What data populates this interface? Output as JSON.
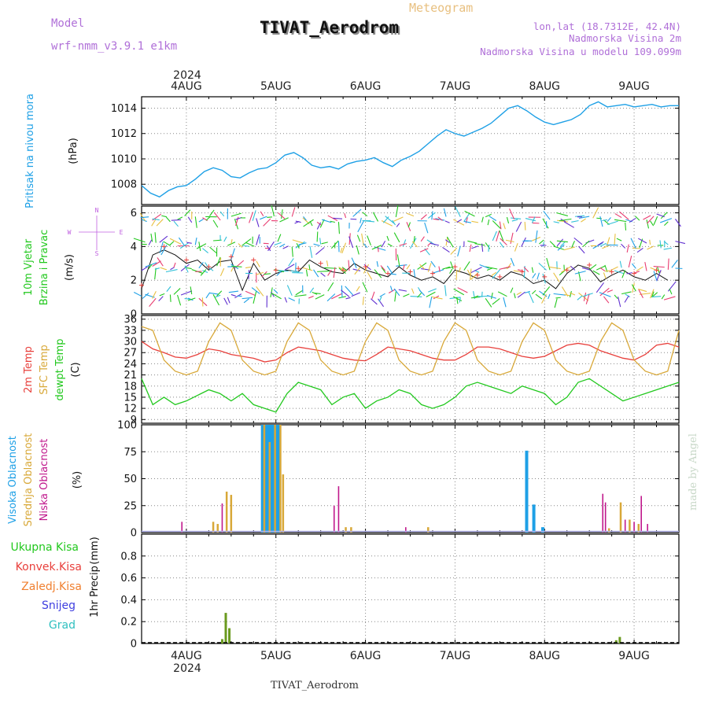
{
  "header": {
    "model_label": "Model",
    "model_name": "wrf-nmm_v3.9.1  e1km",
    "title": "TIVAT_Aerodrom",
    "product": "Meteogram",
    "lonlat": "lon,lat (18.7312E, 42.4N)",
    "altitude": "Nadmorska Visina 2m",
    "model_altitude": "Nadmorska Visina u modelu 109.099m"
  },
  "footer": {
    "station": "TIVAT_Aerodrom",
    "credit": "made by Angel"
  },
  "time_axis": {
    "year": "2024",
    "days": [
      "4AUG",
      "5AUG",
      "6AUG",
      "7AUG",
      "8AUG",
      "9AUG"
    ]
  },
  "colors": {
    "pressure": "#1ea0e6",
    "temp2m": "#e8403c",
    "sfc_temp": "#d8a838",
    "dewpt": "#22c81e",
    "high_cloud": "#1ea0e6",
    "mid_cloud": "#d8a838",
    "low_cloud": "#c0188c",
    "precip_total": "#22c81e",
    "precip_conv": "#e8403c",
    "snow": "#4040e0",
    "hail": "#30c0c0",
    "wind_text": "#c060e0"
  },
  "chart_data": [
    {
      "type": "line",
      "panel": "pressure",
      "ylabel_main": "Pritisak na nivou mora",
      "unit": "(hPa)",
      "ylim": [
        1006.4,
        1014.9
      ],
      "yticks": [
        "1008",
        "1010",
        "1012",
        "1014"
      ],
      "grid": true,
      "x_days": [
        0,
        0.1,
        0.2,
        0.3,
        0.4,
        0.5,
        0.6,
        0.7,
        0.8,
        0.9,
        1.0,
        1.1,
        1.2,
        1.3,
        1.4,
        1.5,
        1.6,
        1.7,
        1.8,
        1.9,
        2.0,
        2.1,
        2.2,
        2.3,
        2.4,
        2.5,
        2.6,
        2.7,
        2.8,
        2.9,
        3.0,
        3.1,
        3.2,
        3.3,
        3.4,
        3.5,
        3.6,
        3.7,
        3.8,
        3.9,
        4.0,
        4.1,
        4.2,
        4.3,
        4.4,
        4.5,
        4.6,
        4.7,
        4.8,
        4.9,
        5.0,
        5.1,
        5.2,
        5.3,
        5.4,
        5.5,
        5.6,
        5.7,
        5.8,
        5.9,
        6.0
      ],
      "series": [
        {
          "values": [
            1007.9,
            1007.3,
            1007.0,
            1007.5,
            1007.8,
            1007.9,
            1008.4,
            1009.0,
            1009.3,
            1009.1,
            1008.6,
            1008.5,
            1008.9,
            1009.2,
            1009.3,
            1009.7,
            1010.3,
            1010.5,
            1010.1,
            1009.5,
            1009.3,
            1009.4,
            1009.2,
            1009.6,
            1009.8,
            1009.9,
            1010.1,
            1009.7,
            1009.4,
            1009.9,
            1010.2,
            1010.6,
            1011.2,
            1011.8,
            1012.3,
            1012.0,
            1011.8,
            1012.1,
            1012.4,
            1012.8,
            1013.4,
            1014.0,
            1014.2,
            1013.8,
            1013.3,
            1012.9,
            1012.7,
            1012.9,
            1013.1,
            1013.5,
            1014.2,
            1014.5,
            1014.1,
            1014.2,
            1014.3,
            1014.1,
            1014.2,
            1014.3,
            1014.1,
            1014.2,
            1014.2
          ]
        }
      ]
    },
    {
      "type": "line",
      "panel": "wind",
      "ylabel_main": "10m Vjetar",
      "ylabel_sub": "Brzina i Pravac",
      "unit": "(m/s)",
      "compass": [
        "N",
        "E",
        "S",
        "W"
      ],
      "ylim": [
        0,
        6.4
      ],
      "yticks": [
        "0",
        "2",
        "4",
        "6"
      ],
      "grid": true,
      "x_days": [
        0,
        0.125,
        0.25,
        0.375,
        0.5,
        0.625,
        0.75,
        0.875,
        1.0,
        1.125,
        1.25,
        1.375,
        1.5,
        1.625,
        1.75,
        1.875,
        2.0,
        2.125,
        2.25,
        2.375,
        2.5,
        2.625,
        2.75,
        2.875,
        3.0,
        3.125,
        3.25,
        3.375,
        3.5,
        3.625,
        3.75,
        3.875,
        4.0,
        4.125,
        4.25,
        4.375,
        4.5,
        4.625,
        4.75,
        4.875,
        5.0,
        5.125,
        5.25,
        5.375,
        5.5,
        5.625,
        5.75,
        5.875
      ],
      "series": [
        {
          "values": [
            1.5,
            3.5,
            3.8,
            3.5,
            3.0,
            3.2,
            2.6,
            3.1,
            3.2,
            1.4,
            3.0,
            2.0,
            2.4,
            2.6,
            2.5,
            3.2,
            2.8,
            2.5,
            2.4,
            3.0,
            2.6,
            2.4,
            2.2,
            2.8,
            2.3,
            2.0,
            2.2,
            1.8,
            2.6,
            2.4,
            2.1,
            2.3,
            2.0,
            2.5,
            2.3,
            1.8,
            2.0,
            1.5,
            2.4,
            2.9,
            2.7,
            1.9,
            2.3,
            2.6,
            2.2,
            2.0,
            2.4,
            2.0
          ]
        }
      ]
    },
    {
      "type": "line",
      "panel": "temperature",
      "ylabel_main": "2m Temp",
      "ylabel_sub": "SFC Temp",
      "ylabel_sub2": "dewpt Temp",
      "unit": "(C)",
      "ylim": [
        8,
        37
      ],
      "yticks": [
        "9",
        "12",
        "15",
        "18",
        "21",
        "24",
        "27",
        "30",
        "33",
        "36"
      ],
      "grid": true,
      "x_days": [
        0,
        0.125,
        0.25,
        0.375,
        0.5,
        0.625,
        0.75,
        0.875,
        1.0,
        1.125,
        1.25,
        1.375,
        1.5,
        1.625,
        1.75,
        1.875,
        2.0,
        2.125,
        2.25,
        2.375,
        2.5,
        2.625,
        2.75,
        2.875,
        3.0,
        3.125,
        3.25,
        3.375,
        3.5,
        3.625,
        3.75,
        3.875,
        4.0,
        4.125,
        4.25,
        4.375,
        4.5,
        4.625,
        4.75,
        4.875,
        5.0,
        5.125,
        5.25,
        5.375,
        5.5,
        5.625,
        5.75,
        5.875,
        6.0
      ],
      "series": [
        {
          "name": "2m Temp",
          "values": [
            30,
            28,
            27,
            25.8,
            25.5,
            26.5,
            28,
            27.5,
            26.5,
            26,
            25.5,
            24.5,
            25,
            27,
            28.5,
            28,
            27.5,
            26.5,
            25.5,
            25,
            24.8,
            26.5,
            28.5,
            28,
            27.5,
            26.5,
            25.5,
            25,
            25,
            26.5,
            28.5,
            28.5,
            28,
            27,
            26,
            25.5,
            26,
            27.5,
            29,
            29.5,
            29,
            27.5,
            26.5,
            25.5,
            25,
            26.5,
            29,
            29.5,
            28.5
          ]
        },
        {
          "name": "SFC Temp",
          "values": [
            34,
            33,
            25,
            22,
            21,
            22,
            30,
            35,
            33,
            25,
            22,
            21,
            22,
            30,
            35,
            33,
            25,
            22,
            21,
            22,
            30,
            35,
            33,
            25,
            22,
            21,
            22,
            30,
            35,
            33,
            25,
            22,
            21,
            22,
            30,
            35,
            33,
            25,
            22,
            21,
            22,
            30,
            35,
            33,
            25,
            22,
            21,
            22,
            33
          ]
        },
        {
          "name": "dewpt Temp",
          "values": [
            20,
            13,
            15,
            13,
            14,
            15.5,
            17,
            16,
            14,
            16,
            13,
            12,
            11,
            16,
            19,
            18,
            17,
            13,
            15,
            16,
            12,
            14,
            15,
            17,
            16,
            13,
            12,
            13,
            15,
            18,
            19,
            18,
            17,
            16,
            18,
            17,
            16,
            13,
            15,
            19,
            20,
            18,
            16,
            14,
            15,
            16,
            17,
            18,
            19
          ]
        }
      ]
    },
    {
      "type": "bar",
      "panel": "clouds",
      "ylabel_main": "Visoka Oblacnost",
      "ylabel_sub": "Srednja Oblacnost",
      "ylabel_sub2": "Niska Oblacnost",
      "unit": "(%)",
      "ylim": [
        0,
        100
      ],
      "yticks": [
        "0",
        "25",
        "50",
        "75",
        "100"
      ],
      "grid": true,
      "series": [
        {
          "name": "Visoka Oblacnost",
          "x_days": [
            1.35,
            1.38,
            1.41,
            1.44,
            1.47,
            1.5,
            1.53,
            4.3,
            4.38,
            4.48
          ],
          "values": [
            100,
            100,
            100,
            100,
            100,
            100,
            100,
            76,
            26,
            5
          ]
        },
        {
          "name": "Srednja Oblacnost",
          "x_days": [
            0.8,
            0.85,
            0.95,
            1.0,
            1.37,
            1.43,
            1.49,
            1.55,
            1.58,
            2.28,
            2.34,
            3.2,
            5.22,
            5.35,
            5.45,
            5.55
          ],
          "values": [
            10,
            8,
            38,
            35,
            100,
            84,
            100,
            100,
            54,
            5,
            5,
            5,
            4,
            28,
            12,
            8
          ]
        },
        {
          "name": "Niska Oblacnost",
          "x_days": [
            0.45,
            0.9,
            2.15,
            2.2,
            2.95,
            5.15,
            5.18,
            5.4,
            5.5,
            5.58,
            5.65
          ],
          "values": [
            10,
            27,
            25,
            43,
            5,
            36,
            28,
            12,
            10,
            34,
            8
          ]
        }
      ]
    },
    {
      "type": "bar",
      "panel": "precipitation",
      "legend": [
        "Ukupna Kisa",
        "Konvek.Kisa",
        "Zaledj.Kisa",
        "Snijeg",
        "Grad"
      ],
      "ylabel_main": "1hr Precip",
      "unit": "(mm)",
      "ylim": [
        0,
        1.0
      ],
      "yticks": [
        "0",
        "0.2",
        "0.4",
        "0.6",
        "0.8"
      ],
      "grid": true,
      "series": [
        {
          "name": "Ukupna Kisa",
          "x_days": [
            0.9,
            0.94,
            0.98,
            5.3,
            5.34
          ],
          "values": [
            0.04,
            0.28,
            0.14,
            0.03,
            0.06
          ]
        }
      ]
    }
  ]
}
